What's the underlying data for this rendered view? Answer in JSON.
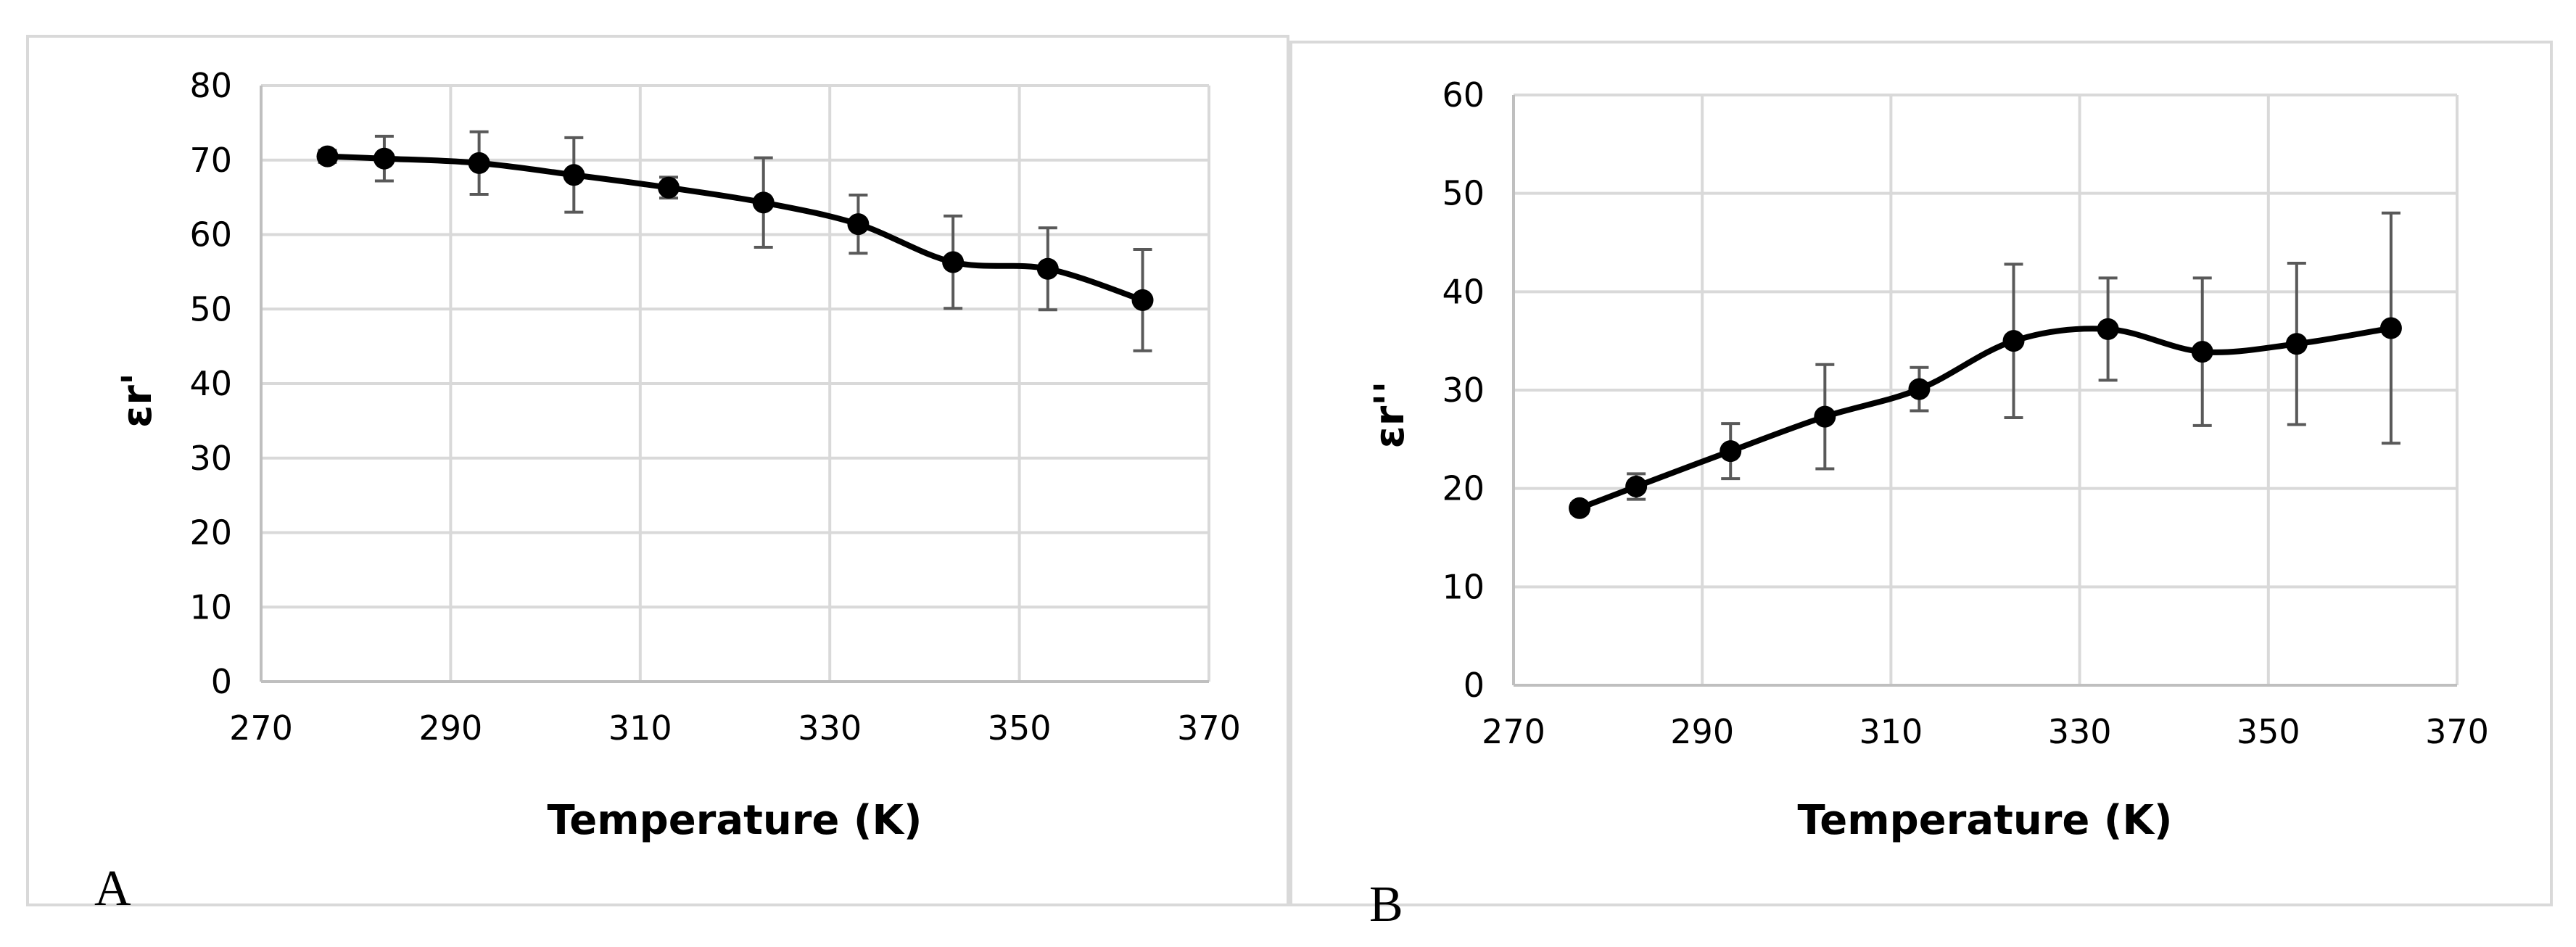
{
  "chart_data": [
    {
      "type": "line",
      "panel_label": "A",
      "title": "",
      "xlabel": "Temperature (K)",
      "ylabel": "εr'",
      "xlim": [
        270,
        370
      ],
      "ylim": [
        0,
        80
      ],
      "xticks": [
        270,
        290,
        310,
        330,
        350,
        370
      ],
      "yticks": [
        0,
        10,
        20,
        30,
        40,
        50,
        60,
        70,
        80
      ],
      "grid": true,
      "color": "#000000",
      "series": [
        {
          "name": "εr'",
          "x": [
            277,
            283,
            293,
            303,
            313,
            323,
            333,
            343,
            353,
            363
          ],
          "y": [
            70.5,
            70.2,
            69.6,
            68.0,
            66.3,
            64.3,
            61.4,
            56.3,
            55.4,
            51.2
          ],
          "err": [
            0.8,
            3.0,
            4.2,
            5.0,
            1.4,
            6.0,
            3.9,
            6.2,
            5.5,
            6.8
          ]
        }
      ]
    },
    {
      "type": "line",
      "panel_label": "B",
      "title": "",
      "xlabel": "Temperature (K)",
      "ylabel": "εr''",
      "xlim": [
        270,
        370
      ],
      "ylim": [
        0,
        60
      ],
      "xticks": [
        270,
        290,
        310,
        330,
        350,
        370
      ],
      "yticks": [
        0,
        10,
        20,
        30,
        40,
        50,
        60
      ],
      "grid": true,
      "color": "#000000",
      "series": [
        {
          "name": "εr''",
          "x": [
            277,
            283,
            293,
            303,
            313,
            323,
            333,
            343,
            353,
            363
          ],
          "y": [
            18.0,
            20.2,
            23.8,
            27.3,
            30.1,
            35.0,
            36.2,
            33.9,
            34.7,
            36.3
          ],
          "err": [
            0.5,
            1.3,
            2.8,
            5.3,
            2.2,
            7.8,
            5.2,
            7.5,
            8.2,
            11.7
          ]
        }
      ]
    }
  ]
}
